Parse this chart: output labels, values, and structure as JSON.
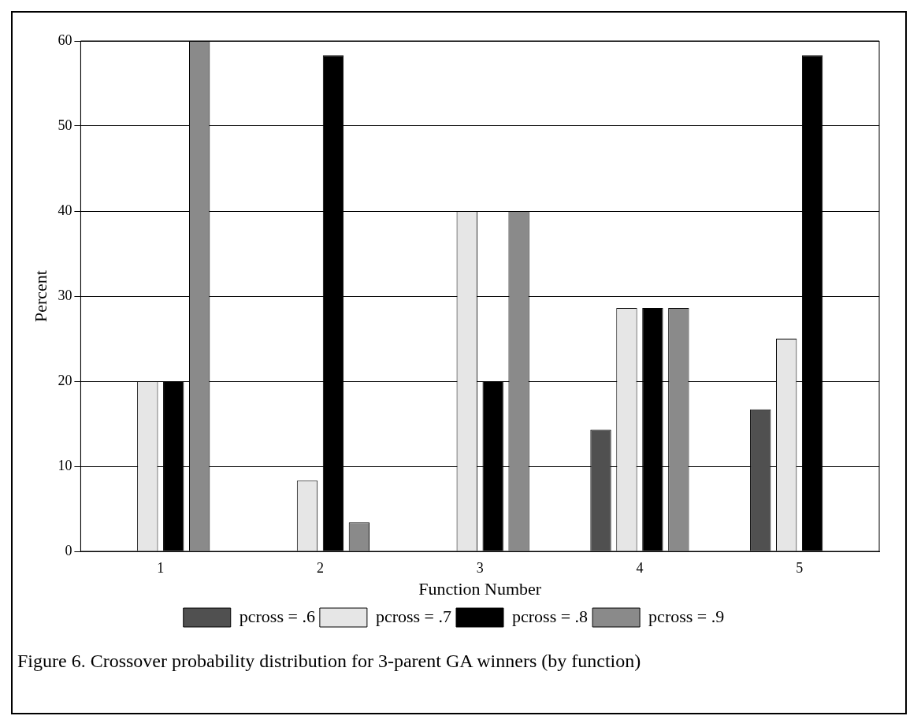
{
  "chart_data": {
    "type": "bar",
    "xlabel": "Function Number",
    "ylabel": "Percent",
    "categories": [
      "1",
      "2",
      "3",
      "4",
      "5"
    ],
    "series": [
      {
        "name": "pcross = .6",
        "color": "#505050",
        "values": [
          0,
          0,
          0,
          14.3,
          16.7
        ]
      },
      {
        "name": "pcross = .7",
        "color": "#e6e6e6",
        "values": [
          20,
          8.3,
          40,
          28.6,
          25
        ]
      },
      {
        "name": "pcross = .8",
        "color": "#000000",
        "values": [
          20,
          58.3,
          20,
          28.6,
          58.3
        ]
      },
      {
        "name": "pcross = .9",
        "color": "#8a8a8a",
        "values": [
          60,
          3.4,
          40,
          28.6,
          0
        ]
      }
    ],
    "ylim": [
      0,
      60
    ],
    "yticks": [
      0,
      10,
      20,
      30,
      40,
      50,
      60
    ],
    "grid": "y",
    "legend": "bottom",
    "annotations": [
      "Figure 6.  Crossover probability distribution for 3-parent GA winners (by function)"
    ]
  }
}
